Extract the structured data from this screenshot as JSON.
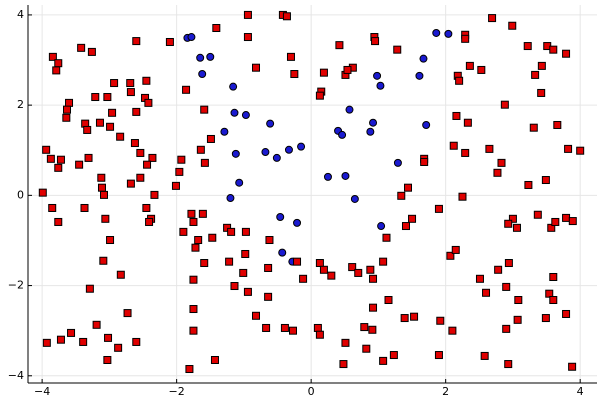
{
  "chart_data": {
    "type": "scatter",
    "grid": true,
    "xlim": [
      -4.21,
      4.25
    ],
    "ylim": [
      -4.16,
      4.22
    ],
    "xticks": [
      {
        "value": -4,
        "label": "−4"
      },
      {
        "value": -2,
        "label": "−2"
      },
      0,
      2,
      4
    ],
    "yticks": [
      {
        "value": -4,
        "label": "−4"
      },
      {
        "value": -2,
        "label": "−2"
      },
      0,
      2,
      4
    ],
    "series": [
      {
        "color": "#1a1ad0",
        "marker": "circle",
        "x": [
          -1.84,
          -1.78,
          -1.65,
          -1.5,
          -1.62,
          -1.16,
          -1.14,
          -0.97,
          -1.29,
          -1.12,
          -0.61,
          -0.68,
          -0.51,
          -0.33,
          -0.15,
          -1.07,
          -1.2,
          -0.46,
          -0.21,
          -0.43,
          -0.28,
          0.25,
          0.51,
          0.65,
          0.4,
          0.46,
          0.57,
          0.88,
          0.92,
          0.98,
          1.03,
          1.04,
          1.29,
          1.61,
          1.67,
          1.71,
          1.86,
          2.04
        ],
        "y": [
          3.49,
          3.51,
          3.05,
          3.07,
          2.69,
          2.41,
          1.83,
          1.78,
          1.41,
          0.92,
          1.59,
          0.96,
          0.83,
          1.01,
          1.08,
          0.28,
          -0.06,
          -0.48,
          -0.61,
          -1.27,
          -1.47,
          0.41,
          0.43,
          -0.08,
          1.43,
          1.34,
          1.9,
          1.41,
          1.61,
          2.65,
          2.43,
          -0.68,
          0.72,
          2.65,
          3.03,
          1.56,
          3.6,
          3.58
        ]
      },
      {
        "color": "#e00000",
        "marker": "square",
        "x": [
          -0.94,
          -0.42,
          -0.36,
          2.69,
          -1.41,
          2.99,
          -0.94,
          0.94,
          0.95,
          -3.84,
          -3.76,
          -3.79,
          -3.42,
          -3.26,
          -2.6,
          -2.1,
          0.42,
          1.28,
          2.29,
          2.29,
          3.22,
          3.51,
          3.6,
          3.79,
          -0.3,
          -0.82,
          -0.25,
          0.62,
          0.51,
          0.54,
          0.19,
          0.15,
          0.13,
          2.36,
          2.53,
          3.33,
          3.43,
          2.18,
          2.2,
          -2.93,
          -2.69,
          -2.45,
          -1.86,
          -2.68,
          -3.21,
          -3.03,
          -2.47,
          -2.42,
          -3.6,
          -3.63,
          -3.64,
          -2.96,
          -2.6,
          2.88,
          3.42,
          -1.59,
          -3.36,
          -3.33,
          -2.99,
          -3.14,
          -2.84,
          -2.62,
          -2.54,
          -1.49,
          -1.64,
          -1.58,
          2.16,
          2.33,
          3.31,
          3.66,
          2.12,
          2.29,
          2.65,
          3.82,
          4.0,
          -3.94,
          -3.87,
          -3.72,
          -3.31,
          -3.45,
          -3.76,
          -3.12,
          -2.68,
          -2.36,
          -2.44,
          -2.54,
          -1.93,
          -1.96,
          -2.01,
          1.68,
          1.68,
          2.77,
          2.83,
          3.23,
          3.49,
          1.44,
          1.34,
          2.25,
          -3.99,
          -3.11,
          -3.08,
          -2.33,
          -3.85,
          -3.37,
          -3.76,
          -3.06,
          -2.45,
          -2.38,
          -2.41,
          -1.78,
          -1.75,
          -1.61,
          -1.9,
          -1.68,
          -1.47,
          -1.25,
          -1.19,
          -0.97,
          -0.62,
          1.9,
          1.5,
          1.41,
          1.12,
          3.0,
          3.06,
          2.93,
          3.37,
          3.57,
          3.63,
          3.79,
          3.89,
          -2.99,
          -1.72,
          -1.59,
          -1.22,
          -1.01,
          -0.64,
          -0.98,
          -0.21,
          -3.09,
          -2.83,
          -1.75,
          -1.14,
          -0.94,
          -0.64,
          -0.12,
          0.13,
          0.19,
          0.3,
          0.61,
          0.7,
          0.88,
          0.92,
          1.07,
          2.07,
          2.15,
          2.51,
          2.78,
          2.94,
          3.6,
          -3.29,
          2.6,
          2.9,
          3.54,
          3.6,
          3.08,
          -1.75,
          1.15,
          0.92,
          -2.73,
          -0.82,
          3.79,
          3.49,
          1.39,
          1.53,
          1.92,
          3.07,
          -3.19,
          -1.75,
          -0.67,
          -0.39,
          -0.27,
          0.1,
          0.13,
          0.79,
          0.91,
          2.1,
          2.9,
          -3.93,
          -3.72,
          -3.57,
          -3.39,
          -3.02,
          -2.87,
          -2.6,
          0.51,
          0.82,
          1.23,
          -3.03,
          -1.43,
          0.48,
          1.07,
          1.9,
          2.58,
          2.93,
          -1.81,
          3.88
        ],
        "y": [
          4.0,
          4.0,
          3.97,
          3.93,
          3.71,
          3.76,
          3.51,
          3.51,
          3.42,
          3.07,
          2.93,
          2.77,
          3.27,
          3.18,
          3.42,
          3.4,
          3.33,
          3.23,
          3.56,
          3.47,
          3.31,
          3.31,
          3.23,
          3.14,
          3.07,
          2.83,
          2.69,
          2.83,
          2.67,
          2.78,
          2.72,
          2.3,
          2.21,
          2.87,
          2.78,
          2.67,
          2.87,
          2.65,
          2.54,
          2.49,
          2.49,
          2.54,
          2.34,
          2.29,
          2.18,
          2.18,
          2.16,
          2.05,
          2.05,
          1.9,
          1.72,
          1.83,
          1.85,
          2.01,
          2.27,
          1.9,
          1.59,
          1.45,
          1.52,
          1.61,
          1.3,
          1.16,
          0.94,
          1.25,
          1.01,
          0.72,
          1.76,
          1.61,
          1.5,
          1.56,
          1.1,
          0.94,
          1.03,
          1.03,
          0.99,
          1.01,
          0.81,
          0.79,
          0.83,
          0.68,
          0.61,
          0.39,
          0.26,
          0.83,
          0.68,
          0.39,
          0.79,
          0.52,
          0.21,
          0.81,
          0.74,
          0.5,
          0.72,
          0.23,
          0.34,
          0.17,
          -0.01,
          -0.03,
          0.06,
          0.17,
          0.01,
          0.01,
          -0.28,
          -0.28,
          -0.59,
          -0.52,
          -0.28,
          -0.52,
          -0.59,
          -0.41,
          -0.59,
          -0.41,
          -0.81,
          -0.99,
          -0.94,
          -0.72,
          -0.81,
          -0.81,
          -0.99,
          -0.3,
          -0.52,
          -0.68,
          -0.94,
          -0.52,
          -0.72,
          -0.63,
          -0.43,
          -0.72,
          -0.59,
          -0.5,
          -0.57,
          -0.99,
          -1.16,
          -1.5,
          -1.47,
          -1.72,
          -1.61,
          -1.3,
          -1.47,
          -1.45,
          -1.76,
          -1.87,
          -2.01,
          -2.14,
          -2.25,
          -1.85,
          -1.5,
          -1.65,
          -1.78,
          -1.59,
          -1.72,
          -1.65,
          -1.85,
          -1.47,
          -1.34,
          -1.21,
          -1.85,
          -1.65,
          -1.5,
          -1.81,
          -2.07,
          -2.16,
          -2.03,
          -2.18,
          -2.32,
          -2.32,
          -2.52,
          -2.32,
          -2.49,
          -2.61,
          -2.67,
          -2.63,
          -2.72,
          -2.72,
          -2.69,
          -2.78,
          -2.76,
          -2.87,
          -3.0,
          -2.94,
          -2.94,
          -3.0,
          -2.94,
          -3.09,
          -2.92,
          -2.98,
          -3.0,
          -2.96,
          -3.27,
          -3.2,
          -3.05,
          -3.25,
          -3.16,
          -3.38,
          -3.25,
          -3.27,
          -3.4,
          -3.54,
          -3.65,
          -3.65,
          -3.74,
          -3.67,
          -3.54,
          -3.56,
          -3.74,
          -3.85,
          -3.8
        ]
      }
    ]
  }
}
